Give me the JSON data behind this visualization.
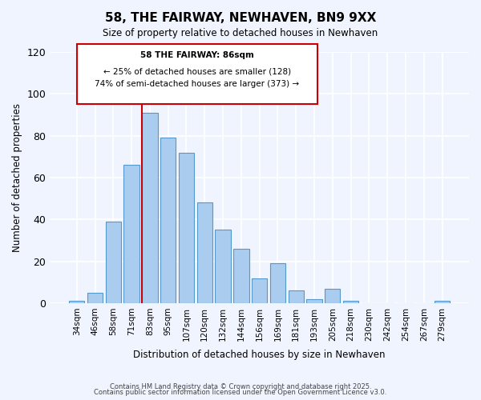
{
  "title": "58, THE FAIRWAY, NEWHAVEN, BN9 9XX",
  "subtitle": "Size of property relative to detached houses in Newhaven",
  "xlabel": "Distribution of detached houses by size in Newhaven",
  "ylabel": "Number of detached properties",
  "categories": [
    "34sqm",
    "46sqm",
    "58sqm",
    "71sqm",
    "83sqm",
    "95sqm",
    "107sqm",
    "120sqm",
    "132sqm",
    "144sqm",
    "156sqm",
    "169sqm",
    "181sqm",
    "193sqm",
    "205sqm",
    "218sqm",
    "230sqm",
    "242sqm",
    "254sqm",
    "267sqm",
    "279sqm"
  ],
  "values": [
    1,
    5,
    39,
    66,
    91,
    79,
    72,
    48,
    35,
    26,
    12,
    19,
    6,
    2,
    7,
    1,
    0,
    0,
    0,
    0,
    1
  ],
  "bar_color": "#aaccee",
  "bar_edge_color": "#5599cc",
  "background_color": "#f0f4ff",
  "grid_color": "#ffffff",
  "vline_x": 4,
  "vline_color": "#cc0000",
  "annotation_title": "58 THE FAIRWAY: 86sqm",
  "annotation_line1": "← 25% of detached houses are smaller (128)",
  "annotation_line2": "74% of semi-detached houses are larger (373) →",
  "annotation_box_color": "#ffffff",
  "annotation_box_edge": "#cc0000",
  "footer_line1": "Contains HM Land Registry data © Crown copyright and database right 2025.",
  "footer_line2": "Contains public sector information licensed under the Open Government Licence v3.0.",
  "ylim": [
    0,
    120
  ],
  "yticks": [
    0,
    20,
    40,
    60,
    80,
    100,
    120
  ]
}
